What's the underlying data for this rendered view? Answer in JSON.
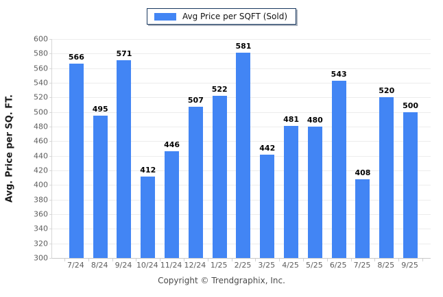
{
  "legend": {
    "label": "Avg Price per SQFT (Sold)"
  },
  "footer": {
    "copyright": "Copyright © Trendgraphix, Inc."
  },
  "colors": {
    "bar": "#4285f4",
    "gridline": "#ececec",
    "axis_line": "#c9c9c9",
    "tick_label": "#5d5d5d",
    "value_label": "#000000",
    "legend_border": "#17375e"
  },
  "chart_data": {
    "type": "bar",
    "title": "",
    "xlabel": "",
    "ylabel": "Avg. Price per SQ. FT.",
    "categories": [
      "7/24",
      "8/24",
      "9/24",
      "10/24",
      "11/24",
      "12/24",
      "1/25",
      "2/25",
      "3/25",
      "4/25",
      "5/25",
      "6/25",
      "7/25",
      "8/25",
      "9/25"
    ],
    "values": [
      566,
      495,
      571,
      412,
      446,
      507,
      522,
      581,
      442,
      481,
      480,
      543,
      408,
      520,
      500
    ],
    "ylim": [
      300,
      600
    ],
    "ytick_step": 20,
    "grid": "horizontal",
    "legend_position": "top-center",
    "bar_color": "#4285f4"
  }
}
